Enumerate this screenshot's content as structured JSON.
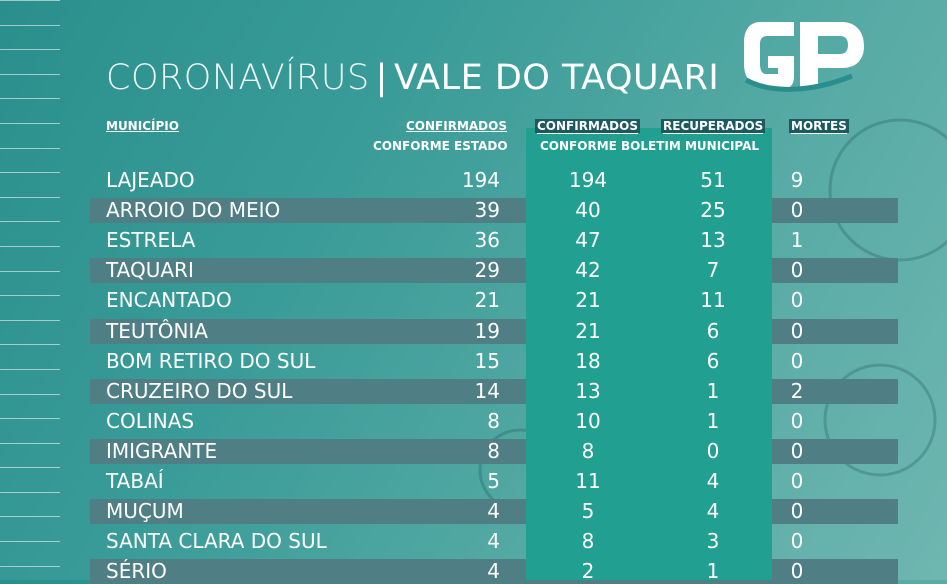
{
  "title": {
    "light": "CORONAVÍRUS",
    "separator": "|",
    "strong": "VALE DO TAQUARI"
  },
  "logo": {
    "text": "GP",
    "icon": "gp-logo-icon"
  },
  "colors": {
    "bg_start": "#2a8f8c",
    "bg_end": "#6fb6b0",
    "band": "#21a091",
    "row_stripe": "#4f7e84",
    "text": "#ffffff"
  },
  "headers": {
    "municipio": "MUNICÍPIO",
    "confirmados_estado": "CONFIRMADOS",
    "conforme_estado": "CONFORME ESTADO",
    "confirmados_boletim": "CONFIRMADOS",
    "recuperados": "RECUPERADOS",
    "conforme_boletim": "CONFORME BOLETIM MUNICIPAL",
    "mortes": "MORTES"
  },
  "chart_data": {
    "type": "table",
    "title": "CORONAVÍRUS | VALE DO TAQUARI",
    "columns": [
      "MUNICÍPIO",
      "CONFIRMADOS CONFORME ESTADO",
      "CONFIRMADOS CONFORME BOLETIM MUNICIPAL",
      "RECUPERADOS CONFORME BOLETIM MUNICIPAL",
      "MORTES"
    ],
    "rows": [
      [
        "LAJEADO",
        "194",
        "194",
        "51",
        "9"
      ],
      [
        "ARROIO DO MEIO",
        "39",
        "40",
        "25",
        "0"
      ],
      [
        "ESTRELA",
        "36",
        "47",
        "13",
        "1"
      ],
      [
        "TAQUARI",
        "29",
        "42",
        "7",
        "0"
      ],
      [
        "ENCANTADO",
        "21",
        "21",
        "11",
        "0"
      ],
      [
        "TEUTÔNIA",
        "19",
        "21",
        "6",
        "0"
      ],
      [
        "BOM RETIRO DO SUL",
        "15",
        "18",
        "6",
        "0"
      ],
      [
        "CRUZEIRO DO SUL",
        "14",
        "13",
        "1",
        "2"
      ],
      [
        "COLINAS",
        "8",
        "10",
        "1",
        "0"
      ],
      [
        "IMIGRANTE",
        "8",
        "8",
        "0",
        "0"
      ],
      [
        "TABAÍ",
        "5",
        "11",
        "4",
        "0"
      ],
      [
        "MUÇUM",
        "4",
        "5",
        "4",
        "0"
      ],
      [
        "SANTA CLARA DO SUL",
        "4",
        "8",
        "3",
        "0"
      ],
      [
        "SÉRIO",
        "4",
        "2",
        "1",
        "0"
      ]
    ]
  }
}
